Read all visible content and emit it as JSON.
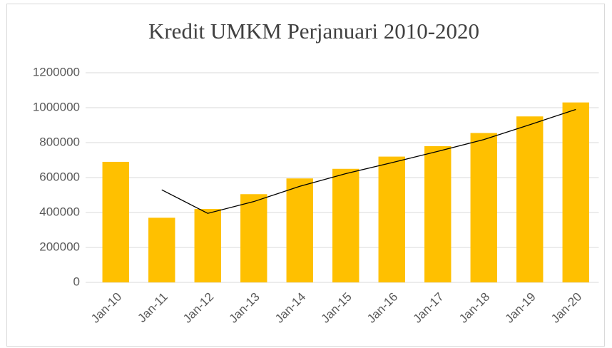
{
  "chart_data": {
    "type": "bar",
    "title": "Kredit UMKM Perjanuari 2010-2020",
    "categories": [
      "Jan-10",
      "Jan-11",
      "Jan-12",
      "Jan-13",
      "Jan-14",
      "Jan-15",
      "Jan-16",
      "Jan-17",
      "Jan-18",
      "Jan-19",
      "Jan-20"
    ],
    "values": [
      690000,
      370000,
      420000,
      505000,
      595000,
      650000,
      720000,
      780000,
      855000,
      950000,
      1030000
    ],
    "color": "#ffc000",
    "trendline": {
      "color": "#000000",
      "values": [
        null,
        530000,
        395000,
        462500,
        550000,
        622500,
        685000,
        750000,
        817500,
        902500,
        990000
      ]
    },
    "ylim": [
      0,
      1200000
    ],
    "yticks": [
      0,
      200000,
      400000,
      600000,
      800000,
      1000000,
      1200000
    ],
    "grid": true
  }
}
